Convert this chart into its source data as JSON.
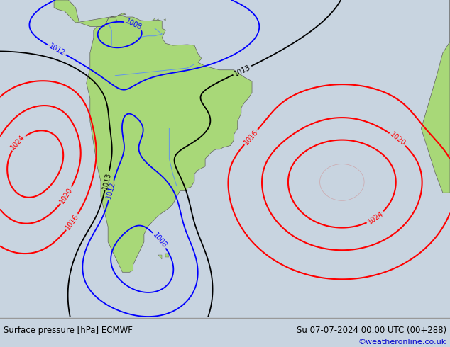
{
  "title_left": "Surface pressure [hPa] ECMWF",
  "title_right": "Su 07-07-2024 00:00 UTC (00+288)",
  "credit": "©weatheronline.co.uk",
  "bg_color": "#c8d4e0",
  "land_color": "#a8d878",
  "footer_bg": "#e0e0e0",
  "footer_text_color": "#000000",
  "credit_color": "#0000cc",
  "fig_width": 6.34,
  "fig_height": 4.9,
  "dpi": 100,
  "lon_min": -105,
  "lon_max": 20,
  "lat_min": -68,
  "lat_max": 16
}
